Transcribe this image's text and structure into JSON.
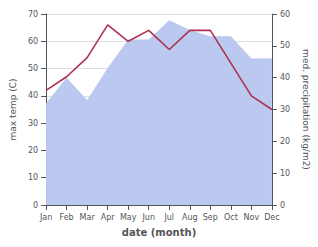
{
  "chart_data": {
    "type": "line",
    "categories": [
      "Jan",
      "Feb",
      "Mar",
      "Apr",
      "May",
      "Jun",
      "Jul",
      "Aug",
      "Sep",
      "Oct",
      "Nov",
      "Dec"
    ],
    "xlabel": "date (month)",
    "ylabel": "max temp (C)",
    "y2label": "med. precipitation (kg/m2)",
    "series": [
      {
        "type": "area",
        "axis": "y2",
        "color": "#bbc8ef",
        "values": [
          32,
          40,
          33,
          43,
          52,
          52,
          58,
          55,
          53,
          53,
          46,
          46
        ]
      },
      {
        "type": "line",
        "color": "#b03050",
        "values": [
          42,
          47,
          54,
          66,
          60,
          64,
          57,
          64,
          64,
          52,
          40,
          35
        ]
      }
    ],
    "ylim": [
      0,
      70
    ],
    "yticks": [
      0,
      10,
      20,
      30,
      40,
      50,
      60,
      70
    ],
    "y2lim": [
      0,
      60
    ],
    "y2ticks": [
      0,
      10,
      20,
      30,
      40,
      50,
      60
    ],
    "grid": true
  }
}
